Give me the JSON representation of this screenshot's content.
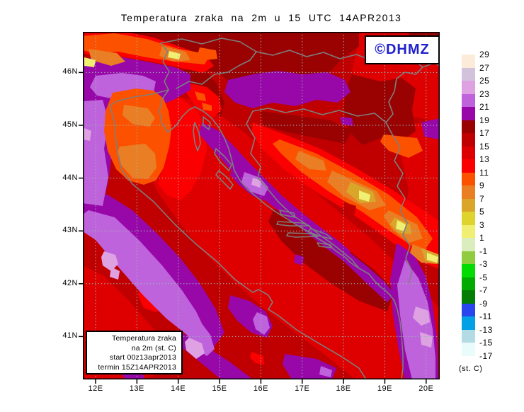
{
  "title": "Temperatura zraka na 2m u 15 UTC 14APR2013",
  "logo": {
    "text": "©DHMZ",
    "color": "#2121CC"
  },
  "info_box": {
    "lines": [
      "Temperatura zraka",
      "na 2m (st. C)",
      "start 00z13apr2013",
      "termin 15Z14APR2013"
    ]
  },
  "axes": {
    "lat_labels": [
      "46N",
      "45N",
      "44N",
      "43N",
      "42N",
      "41N"
    ],
    "lon_labels": [
      "12E",
      "13E",
      "14E",
      "15E",
      "16E",
      "17E",
      "18E",
      "19E",
      "20E"
    ]
  },
  "legend": {
    "unit": "(st. C)",
    "labels": [
      "29",
      "27",
      "25",
      "23",
      "21",
      "19",
      "17",
      "15",
      "13",
      "11",
      "9",
      "7",
      "5",
      "3",
      "1",
      "-1",
      "-3",
      "-5",
      "-7",
      "-9",
      "-11",
      "-13",
      "-15",
      "-17"
    ],
    "band_colors": [
      "#FCEBD9",
      "#D3C2DB",
      "#DEA2E2",
      "#BE63DC",
      "#9807A8",
      "#9A0202",
      "#C00000",
      "#DE0000",
      "#FB0000",
      "#FC5200",
      "#E97E25",
      "#D9A62A",
      "#DFD32D",
      "#F0EF72",
      "#DCEDBD",
      "#91CC40",
      "#02DC02",
      "#02AA02",
      "#037E03",
      "#2845EE",
      "#02A0E4",
      "#B3DBE3",
      "#EAFBFB"
    ]
  },
  "map": {
    "palette": {
      "p25": "#DEA2E2",
      "p23": "#BE63DC",
      "p21": "#9807A8",
      "p19": "#9A0202",
      "p17": "#C00000",
      "p15": "#DE0000",
      "p13": "#FB0000",
      "p11": "#FC5200",
      "p9": "#E97E25",
      "p7": "#D9A62A",
      "p5": "#DFD32D",
      "p3": "#F0EF72"
    },
    "line_color": "#7E7E7E",
    "grid_color": "#9FB4B4",
    "frame_color": "#000000"
  }
}
